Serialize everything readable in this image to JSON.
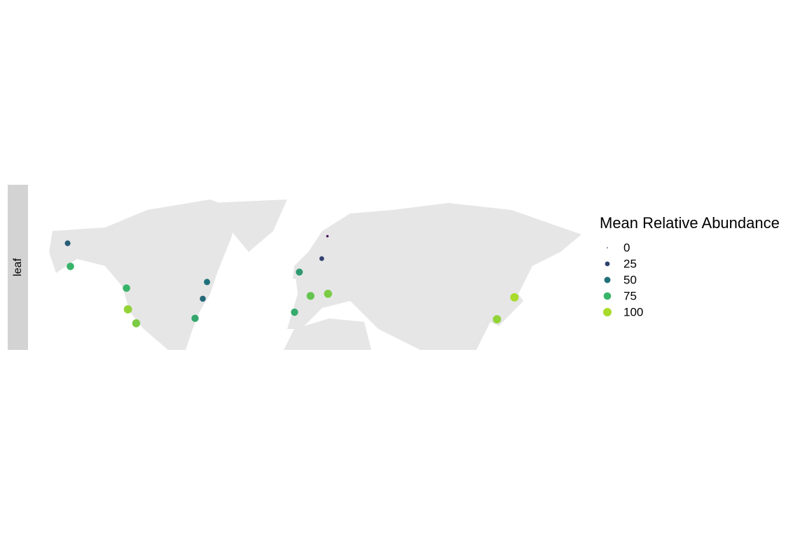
{
  "chart_data": {
    "type": "bubble_map",
    "facet_label": "leaf",
    "legend_title": "Mean Relative Abundance",
    "legend_breaks": [
      0,
      25,
      50,
      75,
      100
    ],
    "legend_colors": [
      "#440154",
      "#31416f",
      "#21707c",
      "#38b46a",
      "#a8db2a"
    ],
    "xlim": [
      -194,
      186
    ],
    "ylim": [
      19,
      89
    ],
    "x": [
      -166.8,
      -164.9,
      -126.4,
      -125.4,
      -119.7,
      -79.3,
      -74,
      -71.1,
      -7.7,
      -11,
      0,
      12,
      7.7,
      11.6,
      128,
      140
    ],
    "y": [
      64.2,
      54.4,
      45.2,
      36.2,
      30.3,
      32.4,
      40.7,
      47.8,
      52,
      35,
      41.9,
      42.8,
      57.7,
      67.2,
      32,
      41.3
    ],
    "values": [
      40,
      75,
      75,
      95,
      90,
      70,
      45,
      50,
      65,
      72,
      85,
      90,
      25,
      3,
      95,
      100
    ]
  }
}
